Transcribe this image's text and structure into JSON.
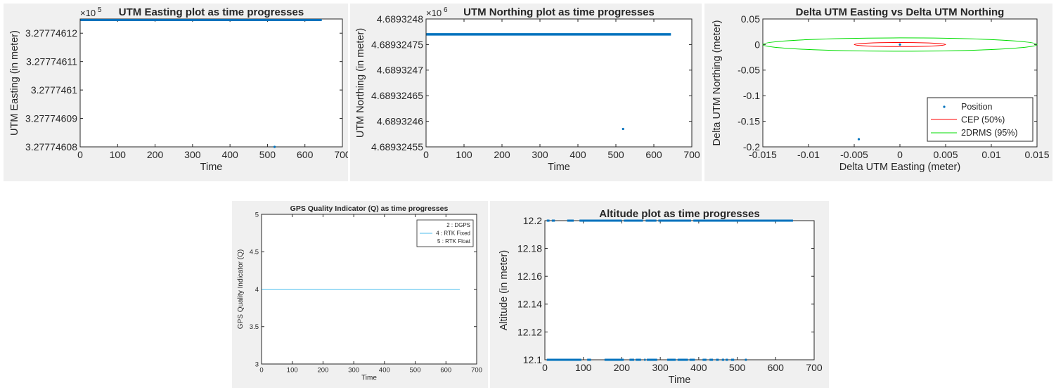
{
  "colors": {
    "figure_bg": "#f0f0f0",
    "axes_bg": "#ffffff",
    "series_blue": "#0072bd",
    "cep_red": "#ff0000",
    "drms_green": "#00dd00",
    "quality_line": "#4dbeee"
  },
  "chart_data": [
    {
      "id": "easting",
      "type": "scatter",
      "title": "UTM Easting plot as time progresses",
      "xlabel": "Time",
      "ylabel": "UTM Easting (in meter)",
      "exponent_label": "×10",
      "exponent_power": "5",
      "xlim": [
        0,
        700
      ],
      "ylim": [
        327774.608,
        327774.6125
      ],
      "xticks": [
        "0",
        "100",
        "200",
        "300",
        "400",
        "500",
        "600",
        "700"
      ],
      "yticks": [
        "3.27774608",
        "3.27774609",
        "3.2777461",
        "3.27774611",
        "3.27774612"
      ],
      "ytick_values": [
        327774.608,
        327774.609,
        327774.61,
        327774.611,
        327774.612
      ],
      "series": [
        {
          "kind": "band",
          "x_range": [
            1,
            645
          ],
          "y": 327774.6125
        },
        {
          "kind": "points",
          "x": [
            519
          ],
          "y": [
            327774.608
          ]
        }
      ]
    },
    {
      "id": "northing",
      "type": "scatter",
      "title": "UTM Northing plot as time progresses",
      "xlabel": "Time",
      "ylabel": "UTM Northing (in meter)",
      "exponent_label": "×10",
      "exponent_power": "6",
      "xlim": [
        0,
        700
      ],
      "ylim": [
        4689324.55,
        4689324.8
      ],
      "xticks": [
        "0",
        "100",
        "200",
        "300",
        "400",
        "500",
        "600",
        "700"
      ],
      "yticks": [
        "4.68932455",
        "4.6893246",
        "4.68932465",
        "4.6893247",
        "4.68932475",
        "4.6893248"
      ],
      "ytick_values": [
        4689324.55,
        4689324.6,
        4689324.65,
        4689324.7,
        4689324.75,
        4689324.8
      ],
      "series": [
        {
          "kind": "band",
          "x_range": [
            1,
            645
          ],
          "y": 4689324.77
        },
        {
          "kind": "points",
          "x": [
            519
          ],
          "y": [
            4689324.585
          ]
        }
      ]
    },
    {
      "id": "delta",
      "type": "scatter",
      "title": "Delta UTM Easting vs Delta UTM Northing",
      "xlabel": "Delta UTM Easting (meter)",
      "ylabel": "Delta UTM Northing (meter)",
      "xlim": [
        -0.015,
        0.015
      ],
      "ylim": [
        -0.2,
        0.05
      ],
      "xticks": [
        "-0.015",
        "-0.01",
        "-0.005",
        "0",
        "0.005",
        "0.01",
        "0.015"
      ],
      "xtick_values": [
        -0.015,
        -0.01,
        -0.005,
        0,
        0.005,
        0.01,
        0.015
      ],
      "yticks": [
        "0.05",
        "0",
        "-0.05",
        "-0.1",
        "-0.15",
        "-0.2"
      ],
      "ytick_values": [
        0.05,
        0,
        -0.05,
        -0.1,
        -0.15,
        -0.2
      ],
      "points": {
        "x": [
          0,
          -0.0045
        ],
        "y": [
          0,
          -0.185
        ]
      },
      "cep": {
        "rx": 0.005,
        "ry": 0.004
      },
      "drms": {
        "rx": 0.015,
        "ry": 0.013
      },
      "legend": [
        "Position",
        "CEP (50%)",
        "2DRMS (95%)"
      ],
      "legend_position": "bottom-right"
    },
    {
      "id": "quality",
      "type": "line",
      "title": "GPS Quality Indicator (Q) as time progresses",
      "xlabel": "Time",
      "ylabel": "GPS Quality Indicator (Q)",
      "xlim": [
        0,
        700
      ],
      "ylim": [
        3,
        5
      ],
      "xticks": [
        "0",
        "100",
        "200",
        "300",
        "400",
        "500",
        "600",
        "700"
      ],
      "yticks": [
        "3",
        "3.5",
        "4",
        "4.5",
        "5"
      ],
      "ytick_values": [
        3,
        3.5,
        4,
        4.5,
        5
      ],
      "series": [
        {
          "x": [
            1,
            645
          ],
          "y": [
            4,
            4
          ]
        }
      ],
      "legend": [
        "2 : DGPS",
        "4 : RTK Fixed",
        "5 : RTK Float"
      ],
      "legend_position": "top-right"
    },
    {
      "id": "altitude",
      "type": "scatter",
      "title": "Altitude plot as time progresses",
      "xlabel": "Time",
      "ylabel": "Altitude (in meter)",
      "xlim": [
        0,
        700
      ],
      "ylim": [
        12.1,
        12.2
      ],
      "xticks": [
        "0",
        "100",
        "200",
        "300",
        "400",
        "500",
        "600",
        "700"
      ],
      "yticks": [
        "12.1",
        "12.12",
        "12.14",
        "12.16",
        "12.18",
        "12.2"
      ],
      "ytick_values": [
        12.1,
        12.12,
        12.14,
        12.16,
        12.18,
        12.2
      ],
      "series": [
        {
          "kind": "segments",
          "y": 12.2,
          "ranges": [
            [
              5,
              12
            ],
            [
              18,
              26
            ],
            [
              58,
              75
            ],
            [
              90,
              200
            ],
            [
              205,
              255
            ],
            [
              262,
              290
            ],
            [
              295,
              380
            ],
            [
              386,
              645
            ]
          ]
        },
        {
          "kind": "segments",
          "y": 12.1,
          "ranges": [
            [
              5,
              95
            ],
            [
              110,
              120
            ],
            [
              155,
              205
            ],
            [
              220,
              232
            ],
            [
              236,
              250
            ],
            [
              258,
              262
            ],
            [
              265,
              292
            ],
            [
              318,
              340
            ],
            [
              345,
              372
            ],
            [
              376,
              390
            ],
            [
              410,
              420
            ],
            [
              428,
              437
            ],
            [
              445,
              452
            ],
            [
              460,
              466
            ],
            [
              470,
              476
            ],
            [
              484,
              492
            ],
            [
              520,
              525
            ]
          ]
        }
      ]
    }
  ]
}
